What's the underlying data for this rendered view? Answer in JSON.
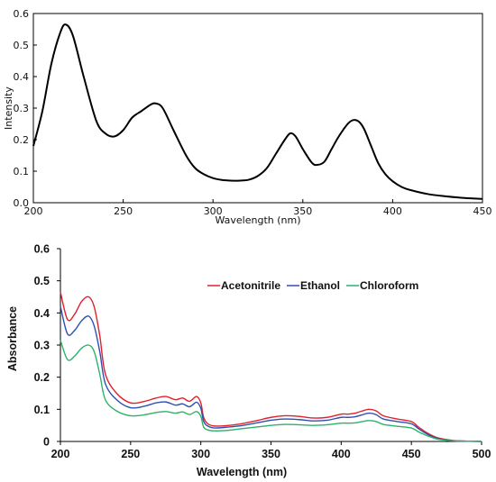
{
  "chart_data": [
    {
      "type": "line",
      "title": "",
      "xlabel": "Wavelength (nm)",
      "ylabel": "Intensity",
      "xlim": [
        200,
        450
      ],
      "ylim": [
        0,
        0.6
      ],
      "xticks": [
        "200",
        "250",
        "300",
        "350",
        "400",
        "450"
      ],
      "yticks": [
        "0.0",
        "0.1",
        "0.2",
        "0.3",
        "0.4",
        "0.5",
        "0.6"
      ],
      "grid": false,
      "series": [
        {
          "color": "#000000",
          "x": [
            200,
            205,
            210,
            215,
            218,
            222,
            228,
            235,
            240,
            245,
            250,
            255,
            260,
            265,
            268,
            272,
            278,
            285,
            290,
            295,
            300,
            305,
            310,
            315,
            320,
            325,
            330,
            335,
            340,
            343,
            346,
            350,
            355,
            358,
            362,
            366,
            370,
            375,
            378,
            381,
            384,
            388,
            392,
            396,
            400,
            405,
            410,
            420,
            430,
            440,
            450
          ],
          "y": [
            0.18,
            0.29,
            0.44,
            0.54,
            0.565,
            0.53,
            0.4,
            0.26,
            0.22,
            0.21,
            0.23,
            0.27,
            0.29,
            0.31,
            0.315,
            0.3,
            0.23,
            0.15,
            0.11,
            0.09,
            0.078,
            0.072,
            0.07,
            0.07,
            0.073,
            0.085,
            0.11,
            0.155,
            0.2,
            0.22,
            0.21,
            0.17,
            0.127,
            0.12,
            0.13,
            0.17,
            0.21,
            0.25,
            0.262,
            0.258,
            0.235,
            0.18,
            0.125,
            0.09,
            0.068,
            0.05,
            0.04,
            0.027,
            0.02,
            0.015,
            0.012
          ]
        }
      ]
    },
    {
      "type": "line",
      "title": "",
      "xlabel": "Wavelength (nm)",
      "ylabel": "Absorbance",
      "xlim": [
        200,
        500
      ],
      "ylim": [
        0,
        0.6
      ],
      "xticks": [
        "200",
        "250",
        "300",
        "350",
        "400",
        "450",
        "500"
      ],
      "yticks": [
        "0",
        "0.1",
        "0.2",
        "0.3",
        "0.4",
        "0.5",
        "0.6"
      ],
      "grid": false,
      "legend": "top-right",
      "series": [
        {
          "name": "Acetonitrile",
          "color": "#e0202a",
          "x": [
            200,
            205,
            210,
            215,
            220,
            224,
            228,
            232,
            240,
            250,
            260,
            268,
            275,
            282,
            287,
            292,
            297,
            300,
            302,
            305,
            310,
            320,
            330,
            340,
            350,
            360,
            370,
            380,
            390,
            400,
            405,
            410,
            415,
            420,
            425,
            430,
            440,
            450,
            455,
            460,
            465,
            470,
            480,
            490,
            500
          ],
          "y": [
            0.465,
            0.38,
            0.395,
            0.435,
            0.45,
            0.42,
            0.33,
            0.21,
            0.15,
            0.12,
            0.125,
            0.135,
            0.14,
            0.13,
            0.135,
            0.125,
            0.14,
            0.12,
            0.075,
            0.055,
            0.048,
            0.05,
            0.056,
            0.065,
            0.075,
            0.08,
            0.078,
            0.073,
            0.075,
            0.085,
            0.085,
            0.088,
            0.095,
            0.1,
            0.095,
            0.08,
            0.07,
            0.062,
            0.045,
            0.03,
            0.018,
            0.01,
            0.003,
            0.001,
            0.0
          ]
        },
        {
          "name": "Ethanol",
          "color": "#2f4fb0",
          "x": [
            200,
            205,
            210,
            215,
            220,
            224,
            228,
            232,
            240,
            250,
            260,
            268,
            275,
            282,
            287,
            292,
            297,
            300,
            302,
            305,
            310,
            320,
            330,
            340,
            350,
            360,
            370,
            380,
            390,
            400,
            405,
            410,
            415,
            420,
            425,
            430,
            440,
            450,
            455,
            460,
            465,
            470,
            480,
            490,
            500
          ],
          "y": [
            0.42,
            0.335,
            0.345,
            0.375,
            0.39,
            0.36,
            0.28,
            0.18,
            0.13,
            0.105,
            0.11,
            0.12,
            0.123,
            0.113,
            0.117,
            0.108,
            0.122,
            0.103,
            0.063,
            0.048,
            0.042,
            0.045,
            0.05,
            0.058,
            0.066,
            0.07,
            0.068,
            0.064,
            0.066,
            0.075,
            0.075,
            0.077,
            0.083,
            0.088,
            0.083,
            0.07,
            0.062,
            0.055,
            0.04,
            0.026,
            0.015,
            0.008,
            0.002,
            0.001,
            0.0
          ]
        },
        {
          "name": "Chloroform",
          "color": "#2bb36b",
          "x": [
            200,
            205,
            210,
            215,
            220,
            224,
            228,
            232,
            240,
            250,
            260,
            268,
            275,
            282,
            287,
            292,
            297,
            300,
            302,
            305,
            310,
            320,
            330,
            340,
            350,
            360,
            370,
            380,
            390,
            400,
            405,
            410,
            415,
            420,
            425,
            430,
            440,
            450,
            455,
            460,
            465,
            470,
            480,
            490,
            500
          ],
          "y": [
            0.315,
            0.255,
            0.265,
            0.29,
            0.3,
            0.28,
            0.21,
            0.13,
            0.095,
            0.08,
            0.083,
            0.09,
            0.093,
            0.088,
            0.092,
            0.084,
            0.093,
            0.078,
            0.045,
            0.036,
            0.033,
            0.035,
            0.04,
            0.045,
            0.05,
            0.053,
            0.052,
            0.05,
            0.052,
            0.057,
            0.057,
            0.058,
            0.062,
            0.065,
            0.062,
            0.053,
            0.047,
            0.042,
            0.03,
            0.02,
            0.012,
            0.006,
            0.002,
            0.001,
            0.0
          ]
        }
      ]
    }
  ]
}
